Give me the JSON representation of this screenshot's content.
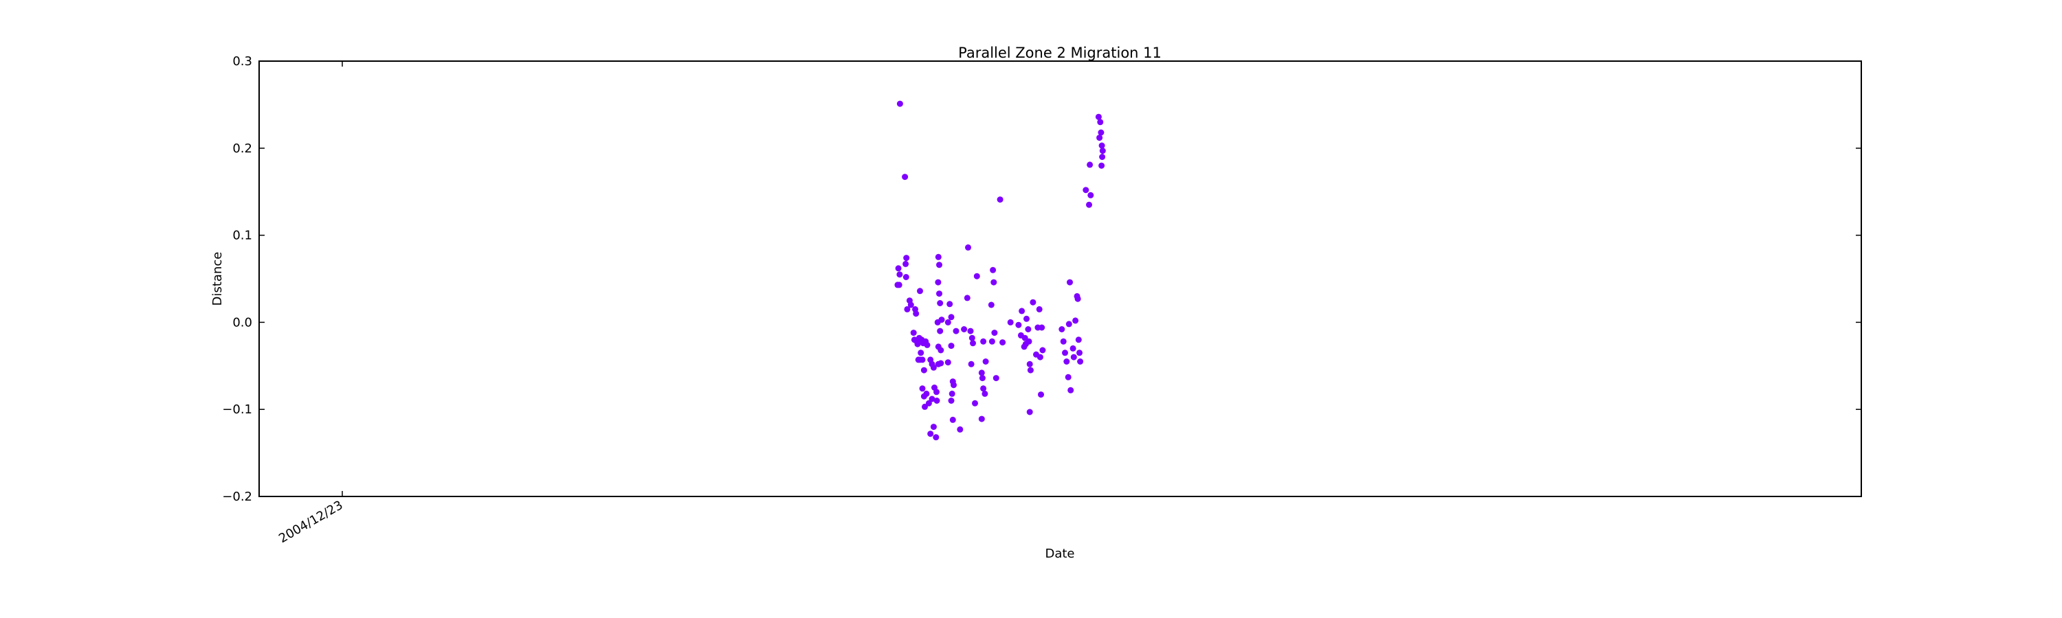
{
  "chart_data": {
    "type": "scatter",
    "title": "Parallel Zone 2 Migration 11",
    "xlabel": "Date",
    "ylabel": "Distance",
    "ylim": [
      -0.2,
      0.3
    ],
    "yticks": [
      "0.3",
      "0.2",
      "0.1",
      "0.0",
      "−0.1",
      "−0.2"
    ],
    "ytick_values": [
      0.3,
      0.2,
      0.1,
      0.0,
      -0.1,
      -0.2
    ],
    "xticks": [
      "2004/12/23"
    ],
    "grid": false,
    "marker_color": "#7f00ff",
    "series": [
      {
        "points": [
          [
            0.4,
            0.251
          ],
          [
            0.4031,
            0.167
          ],
          [
            0.399,
            0.062
          ],
          [
            0.3998,
            0.055
          ],
          [
            0.3985,
            0.043
          ],
          [
            0.3995,
            0.043
          ],
          [
            0.404,
            0.074
          ],
          [
            0.4035,
            0.067
          ],
          [
            0.4038,
            0.052
          ],
          [
            0.406,
            0.025
          ],
          [
            0.4068,
            0.02
          ],
          [
            0.4045,
            0.015
          ],
          [
            0.4095,
            0.015
          ],
          [
            0.41,
            0.01
          ],
          [
            0.4125,
            0.036
          ],
          [
            0.4085,
            -0.012
          ],
          [
            0.409,
            -0.02
          ],
          [
            0.4105,
            -0.022
          ],
          [
            0.411,
            -0.025
          ],
          [
            0.412,
            -0.018
          ],
          [
            0.4135,
            -0.02
          ],
          [
            0.4145,
            -0.024
          ],
          [
            0.416,
            -0.022
          ],
          [
            0.417,
            -0.026
          ],
          [
            0.4115,
            -0.043
          ],
          [
            0.4125,
            -0.043
          ],
          [
            0.414,
            -0.043
          ],
          [
            0.413,
            -0.035
          ],
          [
            0.415,
            -0.055
          ],
          [
            0.419,
            -0.043
          ],
          [
            0.42,
            -0.048
          ],
          [
            0.421,
            -0.052
          ],
          [
            0.424,
            -0.048
          ],
          [
            0.4255,
            -0.047
          ],
          [
            0.414,
            -0.076
          ],
          [
            0.415,
            -0.085
          ],
          [
            0.4165,
            -0.082
          ],
          [
            0.4155,
            -0.097
          ],
          [
            0.418,
            -0.093
          ],
          [
            0.42,
            -0.088
          ],
          [
            0.4215,
            -0.075
          ],
          [
            0.4228,
            -0.08
          ],
          [
            0.419,
            -0.128
          ],
          [
            0.421,
            -0.12
          ],
          [
            0.4225,
            -0.132
          ],
          [
            0.423,
            -0.09
          ],
          [
            0.424,
            0.075
          ],
          [
            0.4245,
            0.066
          ],
          [
            0.4238,
            0.046
          ],
          [
            0.4245,
            0.033
          ],
          [
            0.425,
            0.022
          ],
          [
            0.4235,
            0.0
          ],
          [
            0.425,
            -0.01
          ],
          [
            0.424,
            -0.028
          ],
          [
            0.4255,
            -0.032
          ],
          [
            0.426,
            0.003
          ],
          [
            0.43,
            0.0
          ],
          [
            0.431,
            0.021
          ],
          [
            0.432,
            0.006
          ],
          [
            0.435,
            -0.01
          ],
          [
            0.43,
            -0.046
          ],
          [
            0.432,
            -0.027
          ],
          [
            0.433,
            -0.068
          ],
          [
            0.4335,
            -0.072
          ],
          [
            0.4325,
            -0.082
          ],
          [
            0.432,
            -0.09
          ],
          [
            0.433,
            -0.112
          ],
          [
            0.4375,
            -0.123
          ],
          [
            0.44,
            -0.008
          ],
          [
            0.442,
            0.028
          ],
          [
            0.4425,
            0.086
          ],
          [
            0.444,
            -0.01
          ],
          [
            0.445,
            -0.018
          ],
          [
            0.4455,
            -0.024
          ],
          [
            0.4445,
            -0.048
          ],
          [
            0.4468,
            -0.093
          ],
          [
            0.448,
            0.053
          ],
          [
            0.452,
            -0.022
          ],
          [
            0.451,
            -0.058
          ],
          [
            0.4515,
            -0.064
          ],
          [
            0.452,
            -0.076
          ],
          [
            0.453,
            -0.082
          ],
          [
            0.4535,
            -0.045
          ],
          [
            0.451,
            -0.111
          ],
          [
            0.457,
            0.02
          ],
          [
            0.458,
            0.06
          ],
          [
            0.4585,
            0.046
          ],
          [
            0.4575,
            -0.022
          ],
          [
            0.459,
            -0.012
          ],
          [
            0.46,
            -0.064
          ],
          [
            0.4625,
            0.141
          ],
          [
            0.464,
            -0.023
          ],
          [
            0.469,
            0.0
          ],
          [
            0.474,
            -0.003
          ],
          [
            0.4755,
            -0.015
          ],
          [
            0.476,
            0.013
          ],
          [
            0.478,
            -0.018
          ],
          [
            0.479,
            0.004
          ],
          [
            0.48,
            -0.008
          ],
          [
            0.4785,
            -0.025
          ],
          [
            0.4775,
            -0.028
          ],
          [
            0.4805,
            -0.022
          ],
          [
            0.481,
            -0.048
          ],
          [
            0.4815,
            -0.055
          ],
          [
            0.483,
            0.023
          ],
          [
            0.485,
            -0.037
          ],
          [
            0.486,
            -0.006
          ],
          [
            0.487,
            0.015
          ],
          [
            0.4885,
            -0.006
          ],
          [
            0.4875,
            -0.04
          ],
          [
            0.489,
            -0.032
          ],
          [
            0.488,
            -0.083
          ],
          [
            0.481,
            -0.103
          ],
          [
            0.501,
            -0.008
          ],
          [
            0.502,
            -0.022
          ],
          [
            0.503,
            -0.035
          ],
          [
            0.504,
            -0.045
          ],
          [
            0.5055,
            -0.002
          ],
          [
            0.506,
            0.046
          ],
          [
            0.505,
            -0.063
          ],
          [
            0.5065,
            -0.078
          ],
          [
            0.508,
            -0.03
          ],
          [
            0.5085,
            -0.04
          ],
          [
            0.5095,
            0.002
          ],
          [
            0.5105,
            0.03
          ],
          [
            0.511,
            0.027
          ],
          [
            0.5115,
            -0.02
          ],
          [
            0.512,
            -0.035
          ],
          [
            0.5125,
            -0.045
          ],
          [
            0.516,
            0.152
          ],
          [
            0.518,
            0.135
          ],
          [
            0.519,
            0.146
          ],
          [
            0.5185,
            0.181
          ],
          [
            0.524,
            0.236
          ],
          [
            0.525,
            0.23
          ],
          [
            0.5255,
            0.218
          ],
          [
            0.5245,
            0.212
          ],
          [
            0.526,
            0.203
          ],
          [
            0.5265,
            0.197
          ],
          [
            0.5262,
            0.19
          ],
          [
            0.5258,
            0.18
          ]
        ]
      }
    ]
  }
}
